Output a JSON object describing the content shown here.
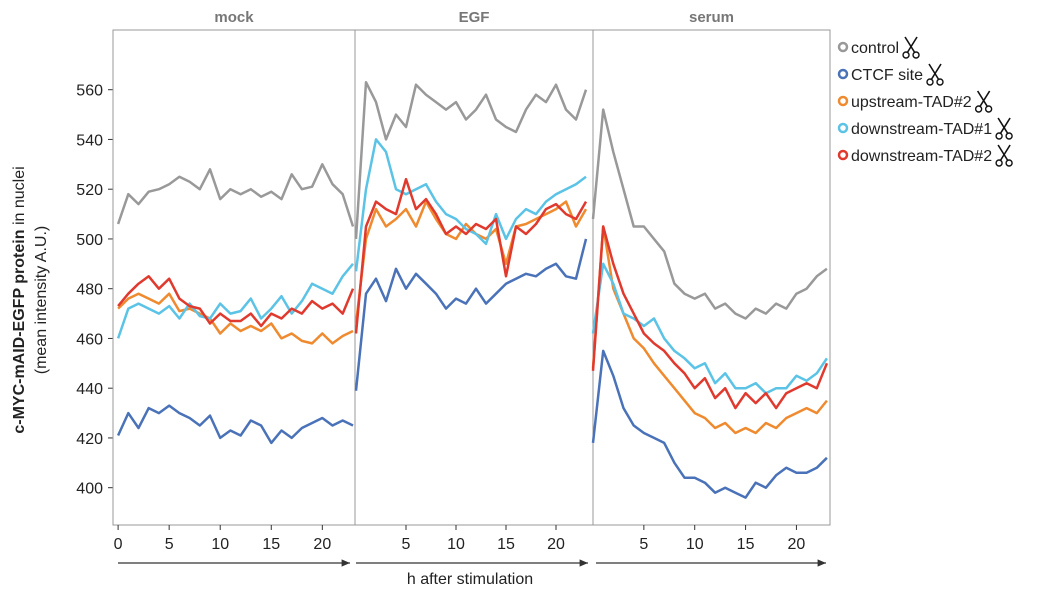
{
  "chart_data": {
    "type": "line",
    "y_label_bold": "c-MYC-mAID-EGFP protein",
    "y_label_rest": " in nuclei",
    "y_label_sub": "(mean intensity A.U.)",
    "x_label": "h after stimulation",
    "ylim": [
      385,
      584
    ],
    "yticks": [
      400,
      420,
      440,
      460,
      480,
      500,
      520,
      540,
      560
    ],
    "x": [
      0,
      1,
      2,
      3,
      4,
      5,
      6,
      7,
      8,
      9,
      10,
      11,
      12,
      13,
      14,
      15,
      16,
      17,
      18,
      19,
      20,
      21,
      22,
      23
    ],
    "series": [
      {
        "name": "control",
        "color": "#999999"
      },
      {
        "name": "CTCF site",
        "color": "#4a72b8"
      },
      {
        "name": "upstream-TAD#2",
        "color": "#ef8a2f"
      },
      {
        "name": "downstream-TAD#1",
        "color": "#5bc3e6"
      },
      {
        "name": "downstream-TAD#2",
        "color": "#e03a2f"
      }
    ],
    "panels": [
      {
        "title": "mock",
        "xlim": [
          -0.5,
          23.2
        ],
        "xticks": [
          0,
          5,
          10,
          15,
          20
        ],
        "values": [
          [
            506,
            518,
            514,
            519,
            520,
            522,
            525,
            523,
            520,
            528,
            516,
            520,
            518,
            520,
            517,
            519,
            516,
            526,
            520,
            521,
            530,
            522,
            518,
            505
          ],
          [
            421,
            430,
            424,
            432,
            430,
            433,
            430,
            428,
            425,
            429,
            420,
            423,
            421,
            427,
            425,
            418,
            423,
            420,
            424,
            426,
            428,
            425,
            427,
            425
          ],
          [
            472,
            476,
            478,
            476,
            474,
            478,
            471,
            472,
            470,
            468,
            462,
            466,
            463,
            465,
            463,
            466,
            460,
            462,
            459,
            458,
            462,
            458,
            461,
            463
          ],
          [
            460,
            472,
            474,
            472,
            470,
            473,
            468,
            474,
            469,
            468,
            474,
            470,
            471,
            476,
            468,
            472,
            477,
            470,
            475,
            482,
            480,
            478,
            485,
            490
          ],
          [
            473,
            478,
            482,
            485,
            480,
            484,
            476,
            473,
            472,
            466,
            470,
            467,
            467,
            470,
            465,
            470,
            468,
            472,
            470,
            475,
            472,
            474,
            470,
            480
          ]
        ]
      },
      {
        "title": "EGF",
        "xlim": [
          -0.1,
          23.7
        ],
        "xticks": [
          5,
          10,
          15,
          20
        ],
        "values": [
          [
            500,
            563,
            555,
            540,
            550,
            545,
            562,
            558,
            555,
            552,
            555,
            548,
            552,
            558,
            548,
            545,
            543,
            552,
            558,
            555,
            562,
            552,
            548,
            560
          ],
          [
            439,
            478,
            484,
            475,
            488,
            480,
            486,
            482,
            478,
            472,
            476,
            474,
            480,
            474,
            478,
            482,
            484,
            486,
            485,
            488,
            490,
            485,
            484,
            500
          ],
          [
            466,
            500,
            512,
            505,
            508,
            512,
            505,
            515,
            508,
            502,
            500,
            506,
            502,
            500,
            504,
            490,
            505,
            506,
            508,
            510,
            512,
            515,
            505,
            512
          ],
          [
            487,
            520,
            540,
            535,
            520,
            518,
            520,
            522,
            515,
            510,
            508,
            504,
            502,
            498,
            510,
            500,
            508,
            512,
            510,
            515,
            518,
            520,
            522,
            525
          ],
          [
            462,
            505,
            515,
            512,
            510,
            524,
            512,
            516,
            510,
            502,
            505,
            502,
            506,
            504,
            508,
            485,
            505,
            502,
            506,
            512,
            514,
            510,
            508,
            515
          ]
        ]
      },
      {
        "title": "serum",
        "xlim": [
          0,
          23.3
        ],
        "xticks": [
          5,
          10,
          15,
          20
        ],
        "values": [
          [
            508,
            552,
            535,
            520,
            505,
            505,
            500,
            495,
            482,
            478,
            476,
            478,
            472,
            474,
            470,
            468,
            472,
            470,
            474,
            472,
            478,
            480,
            485,
            488
          ],
          [
            418,
            455,
            445,
            432,
            425,
            422,
            420,
            418,
            410,
            404,
            404,
            402,
            398,
            400,
            398,
            396,
            402,
            400,
            405,
            408,
            406,
            406,
            408,
            412
          ],
          [
            448,
            505,
            480,
            470,
            460,
            456,
            450,
            445,
            440,
            435,
            430,
            428,
            424,
            426,
            422,
            424,
            422,
            426,
            424,
            428,
            430,
            432,
            430,
            435
          ],
          [
            462,
            490,
            482,
            470,
            468,
            465,
            468,
            460,
            455,
            452,
            448,
            450,
            442,
            446,
            440,
            440,
            442,
            438,
            440,
            440,
            445,
            443,
            446,
            452
          ],
          [
            447,
            505,
            490,
            478,
            470,
            462,
            458,
            455,
            450,
            446,
            440,
            444,
            436,
            440,
            432,
            438,
            434,
            438,
            432,
            438,
            440,
            442,
            440,
            450
          ]
        ]
      }
    ]
  }
}
